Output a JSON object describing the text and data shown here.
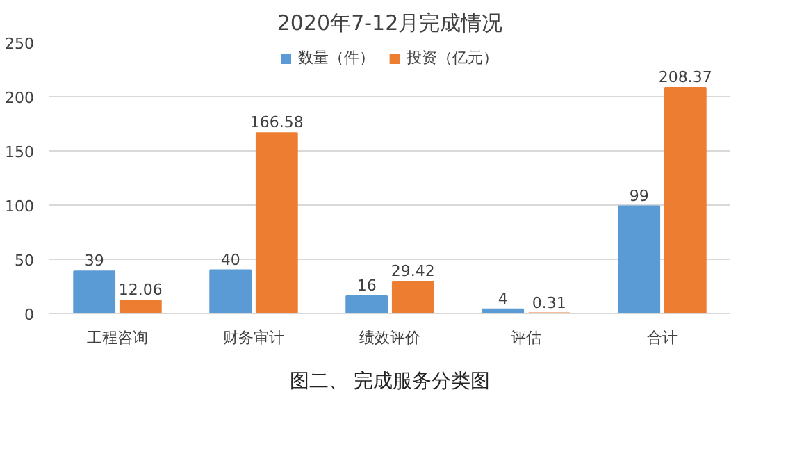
{
  "chart_data": {
    "type": "bar",
    "title": "2020年7-12月完成情况",
    "categories": [
      "工程咨询",
      "财务审计",
      "绩效评价",
      "评估",
      "合计"
    ],
    "series": [
      {
        "name": "数量（件）",
        "color": "#5b9bd5",
        "values": [
          39,
          40,
          16,
          4,
          99
        ]
      },
      {
        "name": "投资（亿元）",
        "color": "#ed7d31",
        "values": [
          12.06,
          166.58,
          29.42,
          0.31,
          208.37
        ]
      }
    ],
    "ylim": [
      0,
      250
    ],
    "yticks": [
      0,
      50,
      100,
      150,
      200,
      250
    ],
    "grid": "y",
    "legend": "top",
    "data_labels": true,
    "annotations": [
      "图二、 完成服务分类图"
    ]
  }
}
